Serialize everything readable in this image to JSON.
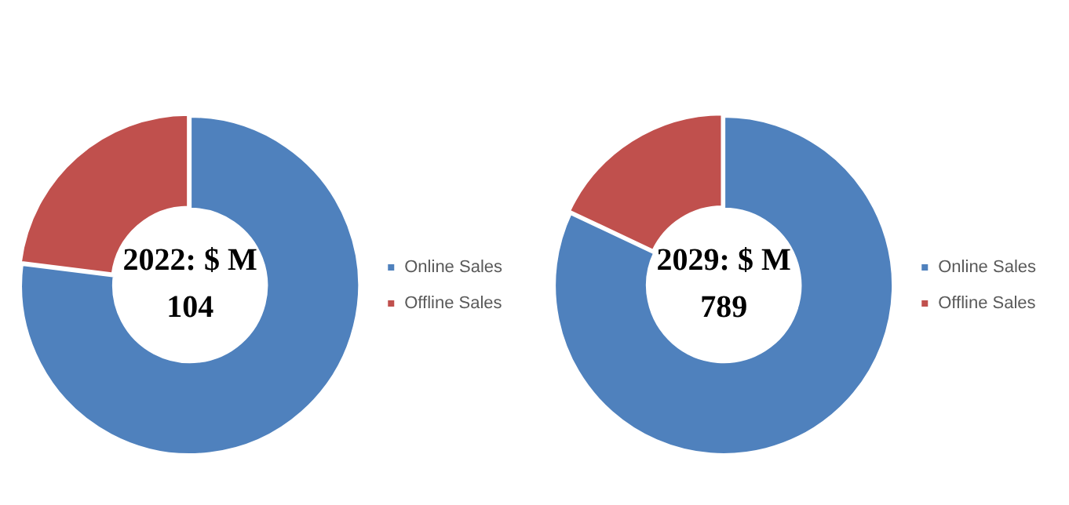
{
  "chart_data": [
    {
      "type": "donut",
      "categories": [
        "Online Sales",
        "Offline Sales"
      ],
      "values": [
        77,
        23
      ],
      "colors": [
        "#4f81bd",
        "#c0504d"
      ],
      "legend": "right",
      "annotations": [
        "2022: $ M",
        "104"
      ]
    },
    {
      "type": "donut",
      "categories": [
        "Online Sales",
        "Offline Sales"
      ],
      "values": [
        82,
        18
      ],
      "colors": [
        "#4f81bd",
        "#c0504d"
      ],
      "legend": "right",
      "annotations": [
        "2029: $ M",
        "789"
      ]
    }
  ]
}
